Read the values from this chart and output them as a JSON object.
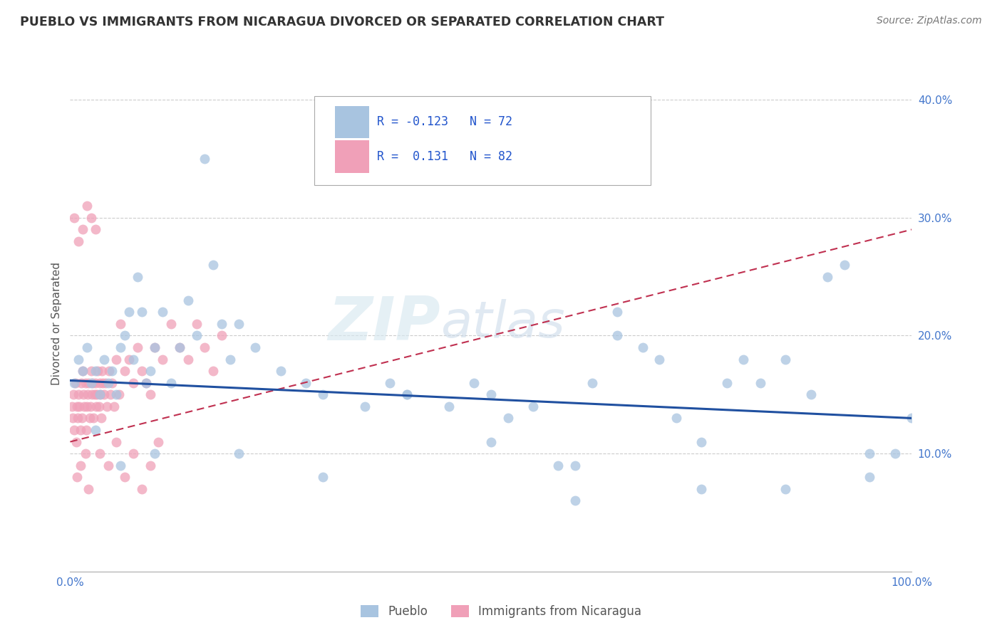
{
  "title": "PUEBLO VS IMMIGRANTS FROM NICARAGUA DIVORCED OR SEPARATED CORRELATION CHART",
  "source": "Source: ZipAtlas.com",
  "ylabel": "Divorced or Separated",
  "legend_labels": [
    "Pueblo",
    "Immigrants from Nicaragua"
  ],
  "blue_R": -0.123,
  "blue_N": 72,
  "pink_R": 0.131,
  "pink_N": 82,
  "blue_color": "#a8c4e0",
  "pink_color": "#f0a0b8",
  "blue_line_color": "#2050a0",
  "pink_line_color": "#c03050",
  "watermark_ZIP": "ZIP",
  "watermark_atlas": "atlas",
  "xlim": [
    0.0,
    1.0
  ],
  "ylim": [
    0.0,
    0.42
  ],
  "xtick_positions": [
    0.0,
    0.2,
    0.4,
    0.6,
    0.8,
    1.0
  ],
  "ytick_positions": [
    0.1,
    0.2,
    0.3,
    0.4
  ],
  "xtick_labels": [
    "0.0%",
    "",
    "",
    "",
    "",
    "100.0%"
  ],
  "ytick_labels": [
    "10.0%",
    "20.0%",
    "30.0%",
    "40.0%"
  ],
  "background_color": "#ffffff",
  "grid_color": "#cccccc",
  "blue_scatter_x": [
    0.005,
    0.01,
    0.015,
    0.02,
    0.025,
    0.03,
    0.035,
    0.04,
    0.045,
    0.05,
    0.055,
    0.06,
    0.065,
    0.07,
    0.075,
    0.08,
    0.085,
    0.09,
    0.095,
    0.1,
    0.11,
    0.12,
    0.13,
    0.14,
    0.15,
    0.16,
    0.17,
    0.18,
    0.19,
    0.2,
    0.22,
    0.25,
    0.28,
    0.3,
    0.35,
    0.38,
    0.4,
    0.45,
    0.48,
    0.5,
    0.52,
    0.55,
    0.58,
    0.6,
    0.62,
    0.65,
    0.68,
    0.7,
    0.72,
    0.75,
    0.78,
    0.8,
    0.82,
    0.85,
    0.88,
    0.9,
    0.92,
    0.95,
    0.98,
    1.0,
    0.03,
    0.06,
    0.1,
    0.2,
    0.3,
    0.5,
    0.65,
    0.75,
    0.85,
    0.95,
    0.4,
    0.6
  ],
  "blue_scatter_y": [
    0.16,
    0.18,
    0.17,
    0.19,
    0.16,
    0.17,
    0.15,
    0.18,
    0.16,
    0.17,
    0.15,
    0.19,
    0.2,
    0.22,
    0.18,
    0.25,
    0.22,
    0.16,
    0.17,
    0.19,
    0.22,
    0.16,
    0.19,
    0.23,
    0.2,
    0.35,
    0.26,
    0.21,
    0.18,
    0.21,
    0.19,
    0.17,
    0.16,
    0.15,
    0.14,
    0.16,
    0.15,
    0.14,
    0.16,
    0.15,
    0.13,
    0.14,
    0.09,
    0.09,
    0.16,
    0.2,
    0.19,
    0.18,
    0.13,
    0.11,
    0.16,
    0.18,
    0.16,
    0.18,
    0.15,
    0.25,
    0.26,
    0.08,
    0.1,
    0.13,
    0.12,
    0.09,
    0.1,
    0.1,
    0.08,
    0.11,
    0.22,
    0.07,
    0.07,
    0.1,
    0.15,
    0.06
  ],
  "pink_scatter_x": [
    0.002,
    0.003,
    0.004,
    0.005,
    0.006,
    0.007,
    0.008,
    0.009,
    0.01,
    0.011,
    0.012,
    0.013,
    0.014,
    0.015,
    0.016,
    0.017,
    0.018,
    0.019,
    0.02,
    0.021,
    0.022,
    0.023,
    0.024,
    0.025,
    0.026,
    0.027,
    0.028,
    0.029,
    0.03,
    0.031,
    0.032,
    0.033,
    0.034,
    0.035,
    0.036,
    0.037,
    0.038,
    0.039,
    0.04,
    0.042,
    0.044,
    0.046,
    0.048,
    0.05,
    0.052,
    0.055,
    0.058,
    0.06,
    0.065,
    0.07,
    0.075,
    0.08,
    0.085,
    0.09,
    0.095,
    0.1,
    0.11,
    0.12,
    0.13,
    0.14,
    0.15,
    0.16,
    0.17,
    0.18,
    0.005,
    0.01,
    0.015,
    0.02,
    0.025,
    0.03,
    0.008,
    0.012,
    0.018,
    0.022,
    0.035,
    0.045,
    0.055,
    0.065,
    0.075,
    0.085,
    0.095,
    0.105
  ],
  "pink_scatter_y": [
    0.14,
    0.13,
    0.15,
    0.12,
    0.16,
    0.11,
    0.14,
    0.13,
    0.15,
    0.14,
    0.12,
    0.16,
    0.13,
    0.17,
    0.15,
    0.14,
    0.16,
    0.12,
    0.14,
    0.15,
    0.16,
    0.13,
    0.14,
    0.17,
    0.15,
    0.16,
    0.13,
    0.15,
    0.16,
    0.14,
    0.15,
    0.17,
    0.14,
    0.16,
    0.15,
    0.13,
    0.17,
    0.16,
    0.15,
    0.16,
    0.14,
    0.17,
    0.15,
    0.16,
    0.14,
    0.18,
    0.15,
    0.21,
    0.17,
    0.18,
    0.16,
    0.19,
    0.17,
    0.16,
    0.15,
    0.19,
    0.18,
    0.21,
    0.19,
    0.18,
    0.21,
    0.19,
    0.17,
    0.2,
    0.3,
    0.28,
    0.29,
    0.31,
    0.3,
    0.29,
    0.08,
    0.09,
    0.1,
    0.07,
    0.1,
    0.09,
    0.11,
    0.08,
    0.1,
    0.07,
    0.09,
    0.11
  ],
  "blue_line_x": [
    0.0,
    1.0
  ],
  "blue_line_y": [
    0.162,
    0.13
  ],
  "pink_line_x": [
    0.0,
    1.0
  ],
  "pink_line_y": [
    0.11,
    0.29
  ]
}
